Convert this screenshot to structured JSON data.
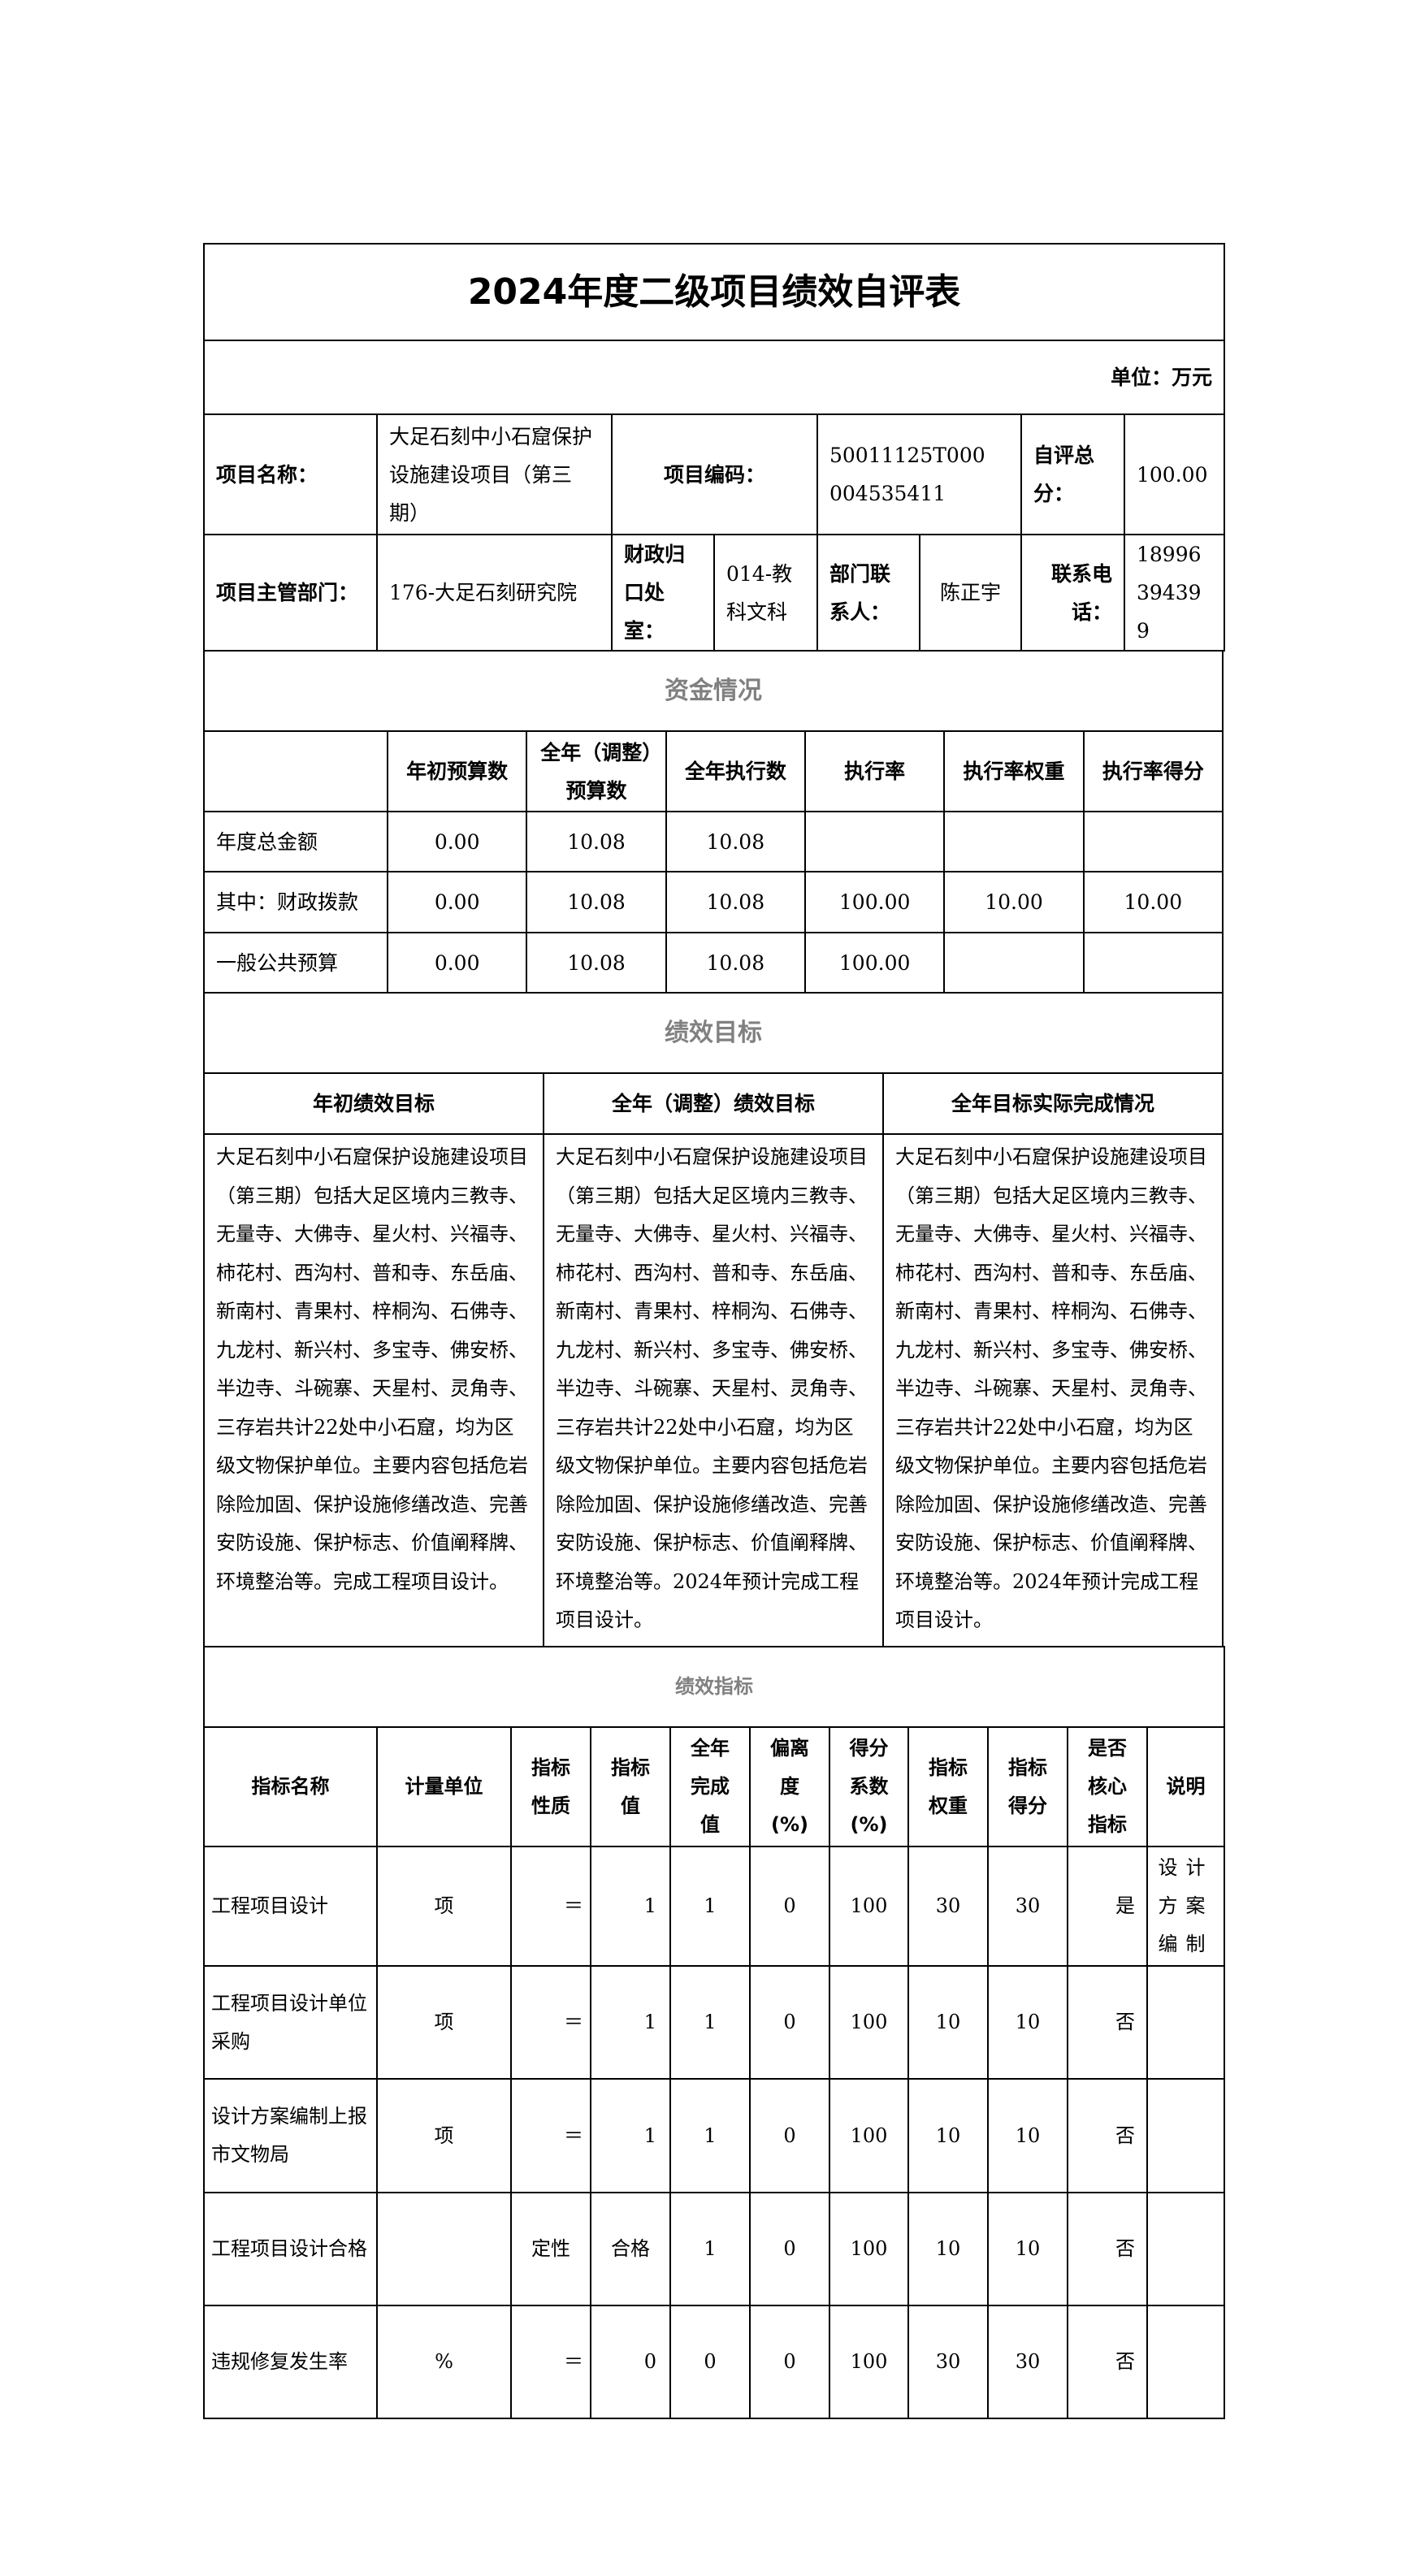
{
  "title": "2024年度二级项目绩效自评表",
  "unit": "单位：万元",
  "info": {
    "project_name_label": "项目名称：",
    "project_name": "大足石刻中小石窟保护设施建设项目（第三期）",
    "project_code_label": "项目编码：",
    "project_code": "50011125T000004535411",
    "score_label": "自评总分：",
    "score": "100.00",
    "dept_label": "项目主管部门：",
    "dept": "176-大足石刻研究院",
    "finance_label": "财政归口处室：",
    "finance": "014-教科文科",
    "contact_label": "部门联系人：",
    "contact": "陈正宇",
    "phone_label": "联系电话：",
    "phone": "18996394399"
  },
  "funds": {
    "section": "资金情况",
    "headers": [
      "",
      "年初预算数",
      "全年（调整）预算数",
      "全年执行数",
      "执行率",
      "执行率权重",
      "执行率得分"
    ],
    "rows": [
      [
        "年度总金额",
        "0.00",
        "10.08",
        "10.08",
        "",
        "",
        ""
      ],
      [
        "其中：财政拨款",
        "0.00",
        "10.08",
        "10.08",
        "100.00",
        "10.00",
        "10.00"
      ],
      [
        "一般公共预算",
        "0.00",
        "10.08",
        "10.08",
        "100.00",
        "",
        ""
      ]
    ]
  },
  "goals": {
    "section": "绩效目标",
    "headers": [
      "年初绩效目标",
      "全年（调整）绩效目标",
      "全年目标实际完成情况"
    ],
    "texts": [
      "大足石刻中小石窟保护设施建设项目（第三期）包括大足区境内三教寺、无量寺、大佛寺、星火村、兴福寺、柿花村、西沟村、普和寺、东岳庙、新南村、青果村、梓桐沟、石佛寺、九龙村、新兴村、多宝寺、佛安桥、半边寺、斗碗寨、天星村、灵角寺、三存岩共计22处中小石窟，均为区级文物保护单位。主要内容包括危岩除险加固、保护设施修缮改造、完善安防设施、保护标志、价值阐释牌、环境整治等。完成工程项目设计。",
      "大足石刻中小石窟保护设施建设项目（第三期）包括大足区境内三教寺、无量寺、大佛寺、星火村、兴福寺、柿花村、西沟村、普和寺、东岳庙、新南村、青果村、梓桐沟、石佛寺、九龙村、新兴村、多宝寺、佛安桥、半边寺、斗碗寨、天星村、灵角寺、三存岩共计22处中小石窟，均为区级文物保护单位。主要内容包括危岩除险加固、保护设施修缮改造、完善安防设施、保护标志、价值阐释牌、环境整治等。2024年预计完成工程项目设计。",
      "大足石刻中小石窟保护设施建设项目（第三期）包括大足区境内三教寺、无量寺、大佛寺、星火村、兴福寺、柿花村、西沟村、普和寺、东岳庙、新南村、青果村、梓桐沟、石佛寺、九龙村、新兴村、多宝寺、佛安桥、半边寺、斗碗寨、天星村、灵角寺、三存岩共计22处中小石窟，均为区级文物保护单位。主要内容包括危岩除险加固、保护设施修缮改造、完善安防设施、保护标志、价值阐释牌、环境整治等。2024年预计完成工程项目设计。"
    ]
  },
  "indicators": {
    "section": "绩效指标",
    "headers": [
      "指标名称",
      "计量单位",
      "指标性质",
      "指标值",
      "全年完成值",
      "偏离度(%)",
      "得分系数(%)",
      "指标权重",
      "指标得分",
      "是否核心指标",
      "说明"
    ],
    "rows": [
      [
        "工程项目设计",
        "项",
        "＝",
        "1",
        "1",
        "0",
        "100",
        "30",
        "30",
        "是",
        "设计方案编制"
      ],
      [
        "工程项目设计单位采购",
        "项",
        "＝",
        "1",
        "1",
        "0",
        "100",
        "10",
        "10",
        "否",
        ""
      ],
      [
        "设计方案编制上报市文物局",
        "项",
        "＝",
        "1",
        "1",
        "0",
        "100",
        "10",
        "10",
        "否",
        ""
      ],
      [
        "工程项目设计合格",
        "",
        "定性",
        "合格",
        "1",
        "0",
        "100",
        "10",
        "10",
        "否",
        ""
      ],
      [
        "违规修复发生率",
        "%",
        "＝",
        "0",
        "0",
        "0",
        "100",
        "30",
        "30",
        "否",
        ""
      ]
    ]
  }
}
